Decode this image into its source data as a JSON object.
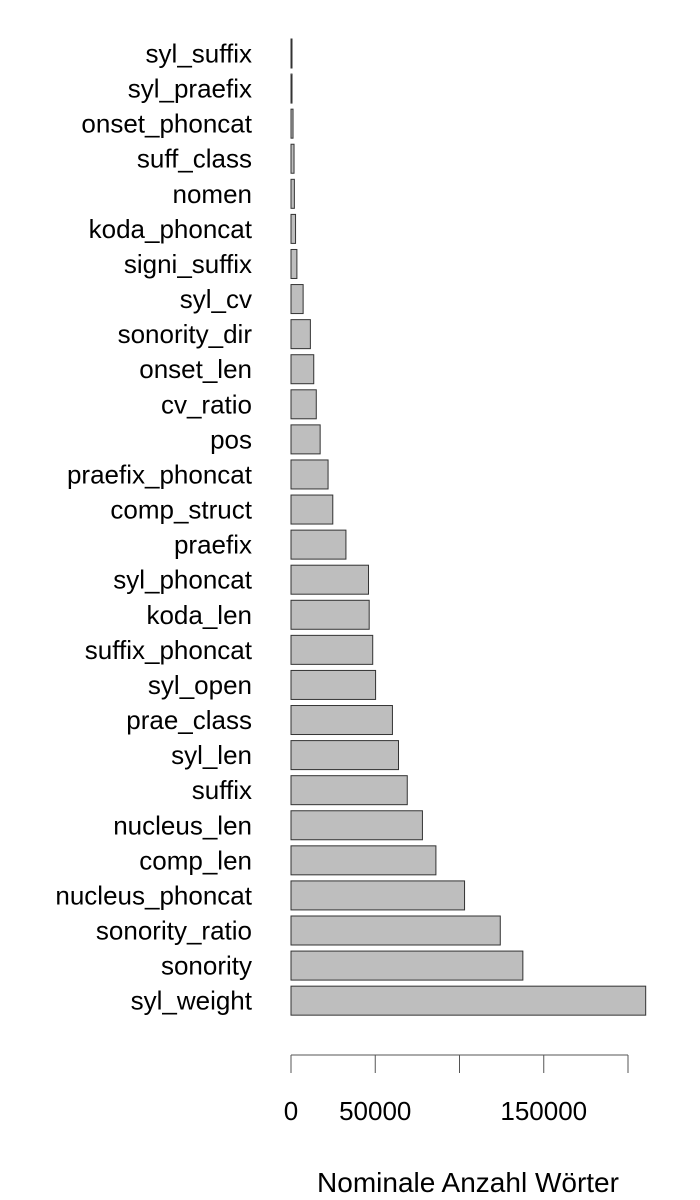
{
  "chart_data": {
    "type": "bar",
    "orientation": "horizontal",
    "categories": [
      "syl_suffix",
      "syl_praefix",
      "onset_phoncat",
      "suff_class",
      "nomen",
      "koda_phoncat",
      "signi_suffix",
      "syl_cv",
      "sonority_dir",
      "onset_len",
      "cv_ratio",
      "pos",
      "praefix_phoncat",
      "comp_struct",
      "praefix",
      "syl_phoncat",
      "koda_len",
      "suffix_phoncat",
      "syl_open",
      "prae_class",
      "syl_len",
      "suffix",
      "nucleus_len",
      "comp_len",
      "nucleus_phoncat",
      "sonority_ratio",
      "sonority",
      "syl_weight"
    ],
    "values": [
      400,
      600,
      1200,
      1800,
      2000,
      2700,
      3500,
      7200,
      11500,
      13500,
      15000,
      17300,
      22000,
      24800,
      32600,
      46000,
      46400,
      48500,
      50200,
      60200,
      63800,
      69000,
      78000,
      86000,
      103000,
      124200,
      137600,
      210500
    ],
    "xlabel": "Nominale Anzahl Wörter",
    "ylabel": "",
    "xlim": [
      0,
      200000
    ],
    "x_ticks": [
      0,
      50000,
      100000,
      150000,
      200000
    ],
    "x_tick_labels": [
      "0",
      "50000",
      "",
      "150000",
      ""
    ],
    "grid": false,
    "bar_color": "#bebebe",
    "bar_edge_color": "#333333"
  }
}
